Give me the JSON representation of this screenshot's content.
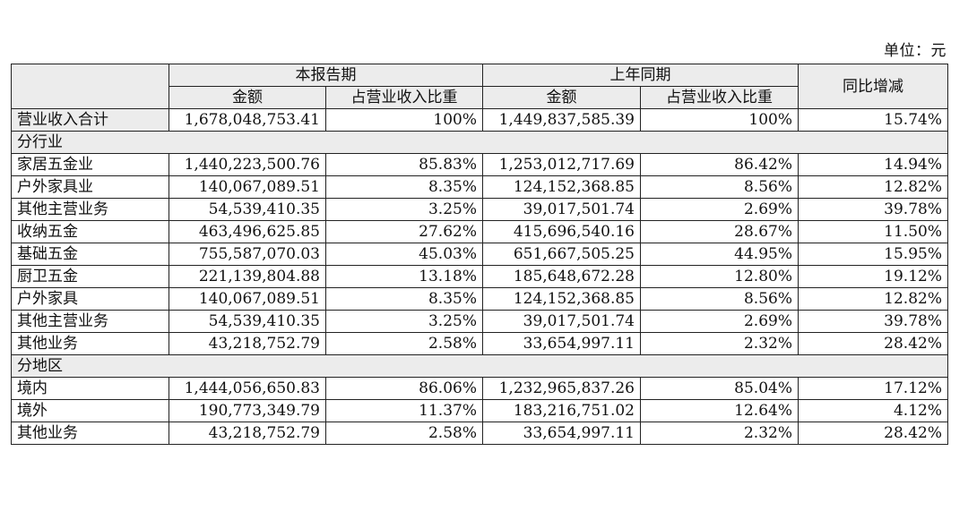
{
  "unit_label": "单位：元",
  "header": {
    "period_current": "本报告期",
    "period_previous": "上年同期",
    "change": "同比增减",
    "amount": "金额",
    "share": "占营业收入比重"
  },
  "total": {
    "label": "营业收入合计",
    "cur_amount": "1,678,048,753.41",
    "cur_share": "100%",
    "prev_amount": "1,449,837,585.39",
    "prev_share": "100%",
    "change": "15.74%"
  },
  "sections": [
    {
      "title": "分行业",
      "rows": [
        {
          "label": "家居五金业",
          "cur_amount": "1,440,223,500.76",
          "cur_share": "85.83%",
          "prev_amount": "1,253,012,717.69",
          "prev_share": "86.42%",
          "change": "14.94%"
        },
        {
          "label": "户外家具业",
          "cur_amount": "140,067,089.51",
          "cur_share": "8.35%",
          "prev_amount": "124,152,368.85",
          "prev_share": "8.56%",
          "change": "12.82%"
        },
        {
          "label": "其他主营业务",
          "cur_amount": "54,539,410.35",
          "cur_share": "3.25%",
          "prev_amount": "39,017,501.74",
          "prev_share": "2.69%",
          "change": "39.78%"
        },
        {
          "label": "收纳五金",
          "cur_amount": "463,496,625.85",
          "cur_share": "27.62%",
          "prev_amount": "415,696,540.16",
          "prev_share": "28.67%",
          "change": "11.50%"
        },
        {
          "label": "基础五金",
          "cur_amount": "755,587,070.03",
          "cur_share": "45.03%",
          "prev_amount": "651,667,505.25",
          "prev_share": "44.95%",
          "change": "15.95%"
        },
        {
          "label": "厨卫五金",
          "cur_amount": "221,139,804.88",
          "cur_share": "13.18%",
          "prev_amount": "185,648,672.28",
          "prev_share": "12.80%",
          "change": "19.12%"
        },
        {
          "label": "户外家具",
          "cur_amount": "140,067,089.51",
          "cur_share": "8.35%",
          "prev_amount": "124,152,368.85",
          "prev_share": "8.56%",
          "change": "12.82%"
        },
        {
          "label": "其他主营业务",
          "cur_amount": "54,539,410.35",
          "cur_share": "3.25%",
          "prev_amount": "39,017,501.74",
          "prev_share": "2.69%",
          "change": "39.78%"
        },
        {
          "label": "其他业务",
          "cur_amount": "43,218,752.79",
          "cur_share": "2.58%",
          "prev_amount": "33,654,997.11",
          "prev_share": "2.32%",
          "change": "28.42%"
        }
      ]
    },
    {
      "title": "分地区",
      "rows": [
        {
          "label": "境内",
          "cur_amount": "1,444,056,650.83",
          "cur_share": "86.06%",
          "prev_amount": "1,232,965,837.26",
          "prev_share": "85.04%",
          "change": "17.12%"
        },
        {
          "label": "境外",
          "cur_amount": "190,773,349.79",
          "cur_share": "11.37%",
          "prev_amount": "183,216,751.02",
          "prev_share": "12.64%",
          "change": "4.12%"
        },
        {
          "label": "其他业务",
          "cur_amount": "43,218,752.79",
          "cur_share": "2.58%",
          "prev_amount": "33,654,997.11",
          "prev_share": "2.32%",
          "change": "28.42%"
        }
      ]
    }
  ]
}
